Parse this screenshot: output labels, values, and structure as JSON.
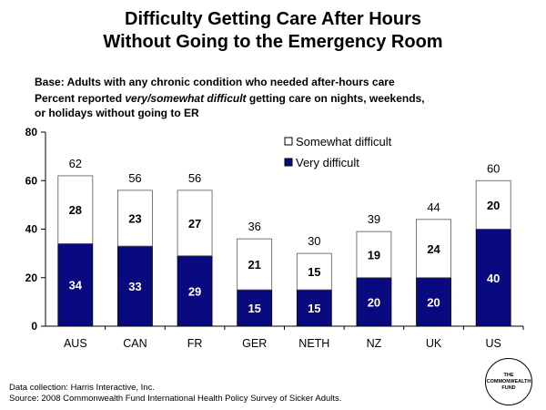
{
  "title_line1": "Difficulty Getting Care After Hours",
  "title_line2": "Without Going to the Emergency Room",
  "base_text": "Base: Adults with any chronic condition who needed after-hours care",
  "percent_pre": "Percent reported ",
  "percent_italic": "very/somewhat difficult",
  "percent_post": " getting care on nights, weekends,",
  "percent_line2": "or holidays without going to ER",
  "footer_collection": "Data collection: Harris Interactive, Inc.",
  "footer_source": "Source: 2008 Commonwealth Fund International Health Policy Survey of Sicker Adults.",
  "seal": {
    "line1": "THE",
    "line2": "COMMONWEALTH",
    "line3": "FUND"
  },
  "chart_data": {
    "type": "bar",
    "stacked": true,
    "categories": [
      "AUS",
      "CAN",
      "FR",
      "GER",
      "NETH",
      "NZ",
      "UK",
      "US"
    ],
    "series": [
      {
        "name": "Very difficult",
        "values": [
          34,
          33,
          29,
          15,
          15,
          20,
          20,
          40
        ],
        "color": "#0a0a80"
      },
      {
        "name": "Somewhat difficult",
        "values": [
          28,
          23,
          27,
          21,
          15,
          19,
          24,
          20
        ],
        "color": "#ffffff"
      }
    ],
    "totals": [
      62,
      56,
      56,
      36,
      30,
      39,
      44,
      60
    ],
    "yticks": [
      0,
      20,
      40,
      60,
      80
    ],
    "ylim": [
      0,
      80
    ],
    "legend_position": "top-right",
    "grid": false
  }
}
